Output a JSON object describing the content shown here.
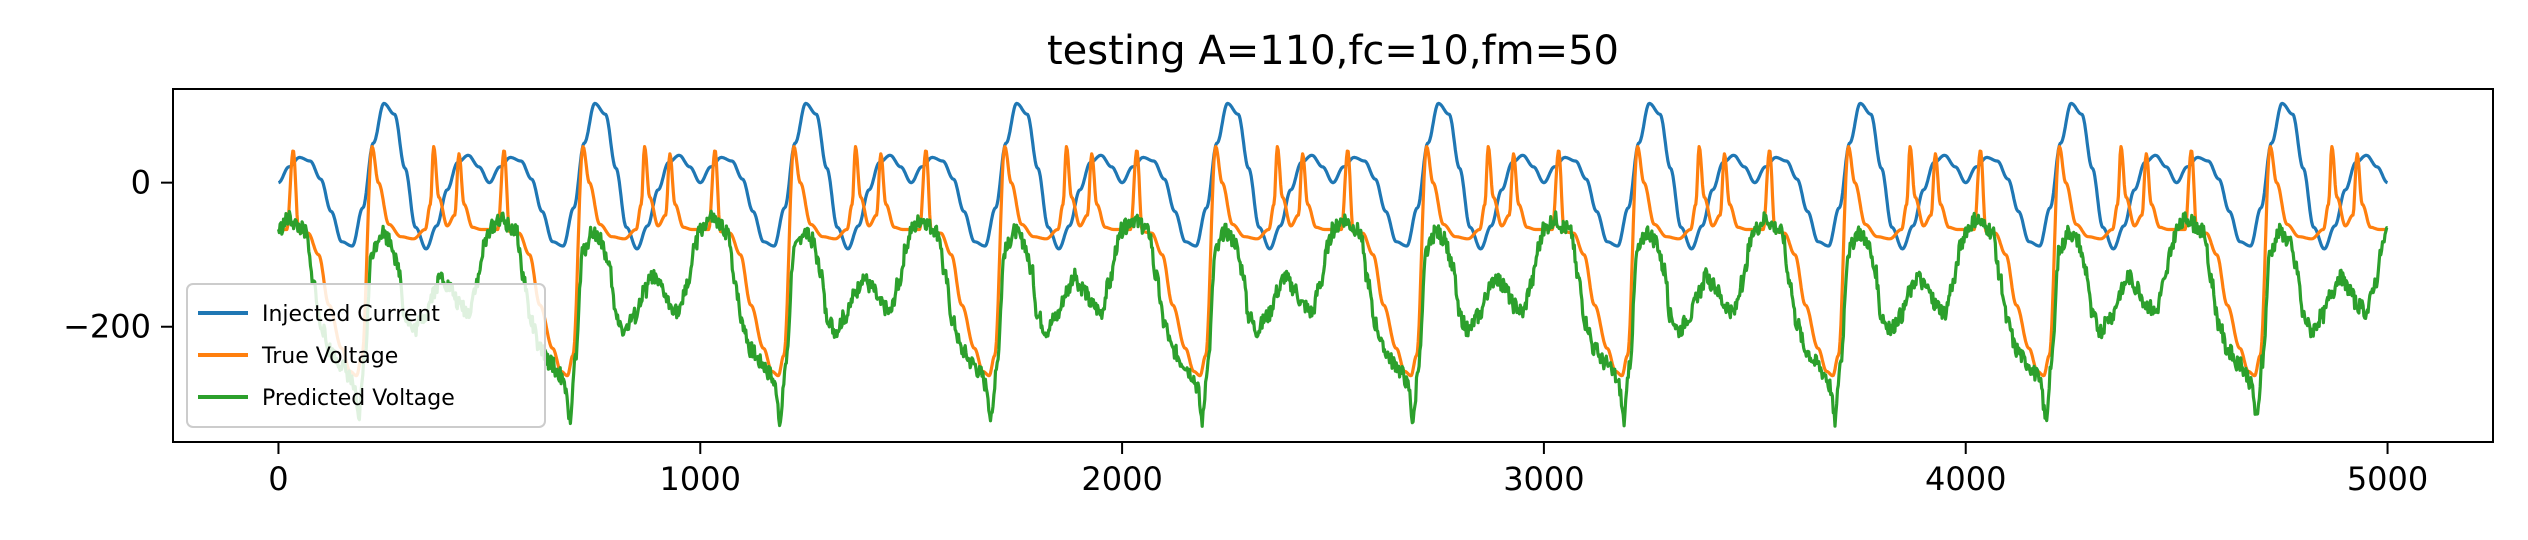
{
  "chart_data": {
    "type": "line",
    "title": "testing A=110,fc=10,fm=50",
    "xlabel": "",
    "ylabel": "",
    "xlim": [
      -250,
      5250
    ],
    "ylim": [
      -360,
      130
    ],
    "x_ticks": [
      0,
      1000,
      2000,
      3000,
      4000,
      5000
    ],
    "x_tick_labels": [
      "0",
      "1000",
      "2000",
      "3000",
      "4000",
      "5000"
    ],
    "y_ticks": [
      0,
      -200
    ],
    "y_tick_labels": [
      "0",
      "−200"
    ],
    "grid": false,
    "legend_position": "lower-left",
    "period": 500,
    "x_range": [
      0,
      5000
    ],
    "series": [
      {
        "name": "Injected Current",
        "color": "#1f77b4",
        "profile": [
          [
            0,
            0
          ],
          [
            25,
            22
          ],
          [
            50,
            35
          ],
          [
            75,
            30
          ],
          [
            100,
            5
          ],
          [
            125,
            -40
          ],
          [
            150,
            -82
          ],
          [
            175,
            -88
          ],
          [
            200,
            -35
          ],
          [
            225,
            55
          ],
          [
            250,
            110
          ],
          [
            275,
            95
          ],
          [
            300,
            20
          ],
          [
            325,
            -62
          ],
          [
            350,
            -92
          ],
          [
            375,
            -60
          ],
          [
            400,
            -10
          ],
          [
            425,
            28
          ],
          [
            450,
            38
          ],
          [
            475,
            22
          ],
          [
            500,
            0
          ]
        ]
      },
      {
        "name": "True Voltage",
        "color": "#ff7f0e",
        "profile": [
          [
            0,
            -65
          ],
          [
            20,
            -65
          ],
          [
            35,
            45
          ],
          [
            48,
            -68
          ],
          [
            70,
            -70
          ],
          [
            95,
            -100
          ],
          [
            120,
            -170
          ],
          [
            150,
            -230
          ],
          [
            170,
            -262
          ],
          [
            185,
            -268
          ],
          [
            198,
            -240
          ],
          [
            222,
            50
          ],
          [
            237,
            0
          ],
          [
            262,
            -58
          ],
          [
            290,
            -75
          ],
          [
            320,
            -78
          ],
          [
            348,
            -65
          ],
          [
            360,
            -30
          ],
          [
            368,
            50
          ],
          [
            380,
            -20
          ],
          [
            400,
            -60
          ],
          [
            418,
            -45
          ],
          [
            428,
            40
          ],
          [
            440,
            -30
          ],
          [
            460,
            -62
          ],
          [
            480,
            -65
          ],
          [
            500,
            -65
          ]
        ]
      },
      {
        "name": "Predicted Voltage",
        "color": "#2ca02c",
        "profile": [
          [
            0,
            -65
          ],
          [
            25,
            -50
          ],
          [
            50,
            -62
          ],
          [
            65,
            -70
          ],
          [
            80,
            -130
          ],
          [
            100,
            -195
          ],
          [
            120,
            -232
          ],
          [
            145,
            -250
          ],
          [
            165,
            -265
          ],
          [
            178,
            -282
          ],
          [
            190,
            -330
          ],
          [
            203,
            -250
          ],
          [
            222,
            -95
          ],
          [
            245,
            -68
          ],
          [
            265,
            -80
          ],
          [
            285,
            -120
          ],
          [
            300,
            -185
          ],
          [
            320,
            -205
          ],
          [
            345,
            -185
          ],
          [
            370,
            -150
          ],
          [
            385,
            -130
          ],
          [
            405,
            -145
          ],
          [
            430,
            -170
          ],
          [
            450,
            -180
          ],
          [
            470,
            -140
          ],
          [
            490,
            -85
          ],
          [
            500,
            -65
          ]
        ]
      }
    ]
  }
}
